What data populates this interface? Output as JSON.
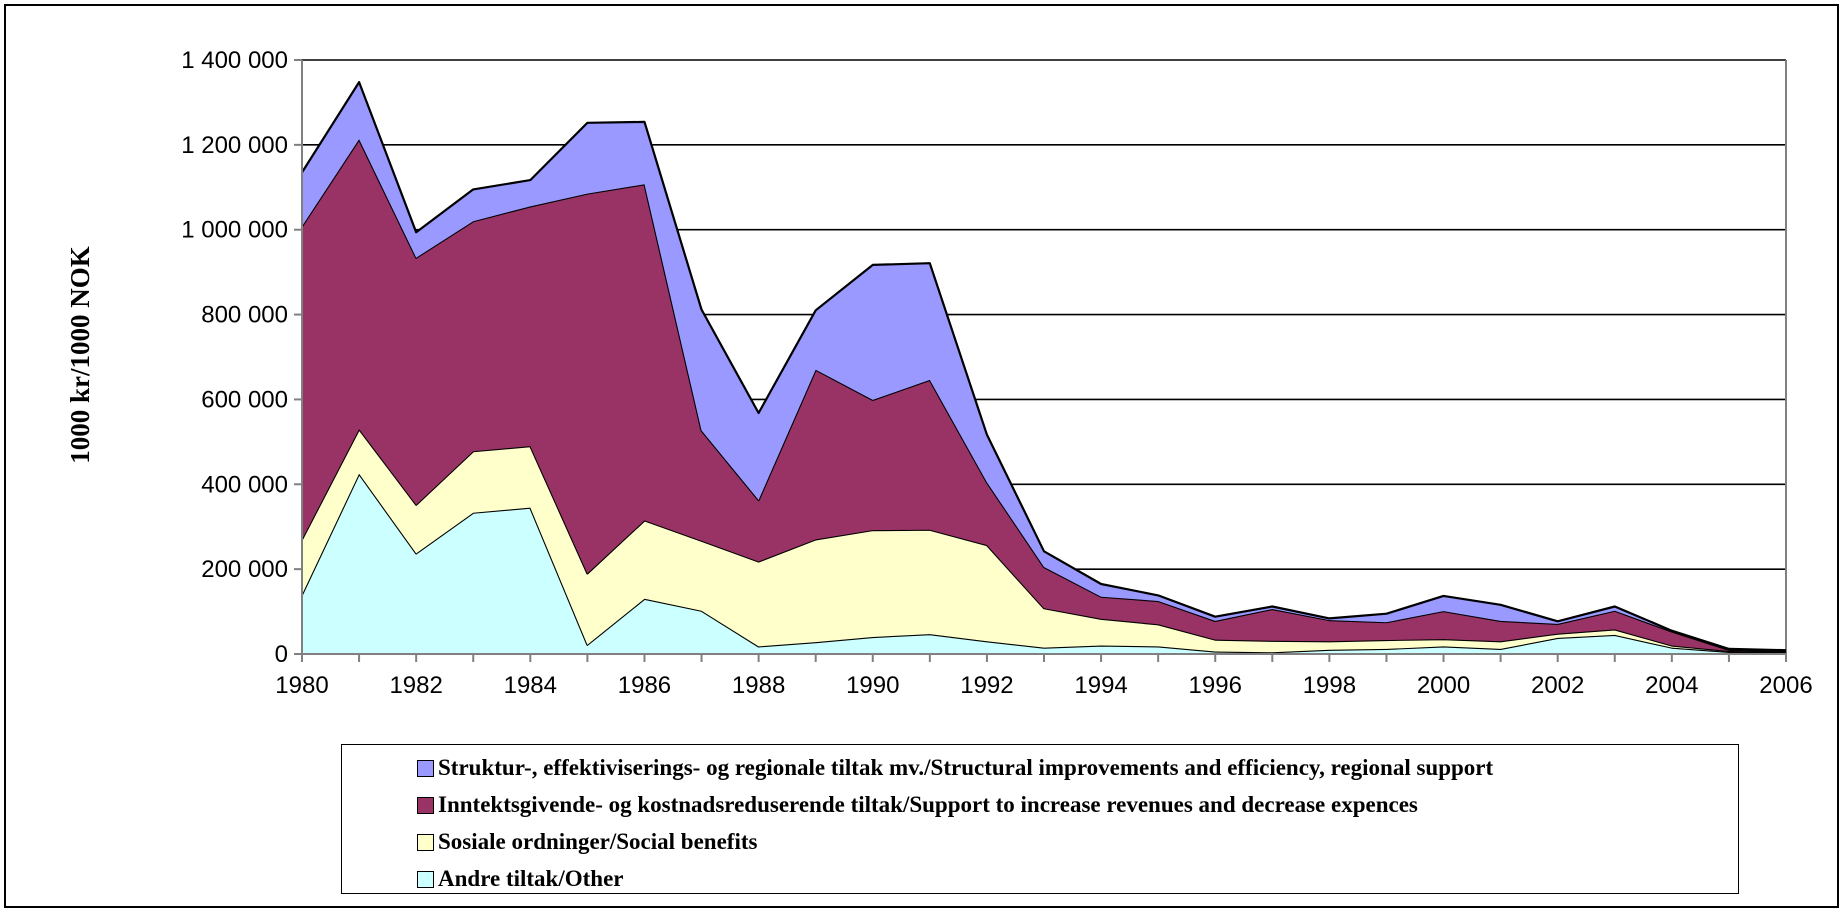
{
  "chart_data": {
    "type": "area",
    "stacked": true,
    "title": "",
    "xlabel": "",
    "ylabel": "1000 kr/1000 NOK",
    "x": [
      1980,
      1981,
      1982,
      1983,
      1984,
      1985,
      1986,
      1987,
      1988,
      1989,
      1990,
      1991,
      1992,
      1993,
      1994,
      1995,
      1996,
      1997,
      1998,
      1999,
      2000,
      2001,
      2002,
      2003,
      2004,
      2005,
      2006
    ],
    "xlim": [
      1980,
      2006
    ],
    "ylim": [
      0,
      1400000
    ],
    "x_ticks": [
      "1980",
      "1982",
      "1984",
      "1986",
      "1988",
      "1990",
      "1992",
      "1994",
      "1996",
      "1998",
      "2000",
      "2002",
      "2004",
      "2006"
    ],
    "y_ticks": [
      "0",
      "200 000",
      "400 000",
      "600 000",
      "800 000",
      "1 000 000",
      "1 200 000",
      "1 400 000"
    ],
    "grid": true,
    "legend_position": "bottom",
    "series": [
      {
        "name": "Andre tiltak/Other",
        "color": "#ccffff",
        "values": [
          140000,
          425000,
          237000,
          333000,
          345000,
          22000,
          130000,
          102000,
          18000,
          28000,
          40000,
          47000,
          30000,
          15000,
          20000,
          18000,
          6000,
          4000,
          10000,
          12000,
          18000,
          12000,
          38000,
          45000,
          15000,
          5000,
          4000
        ]
      },
      {
        "name": "Sosiale ordninger/Social benefits",
        "color": "#ffffcc",
        "values": [
          130000,
          105000,
          115000,
          145000,
          145000,
          168000,
          185000,
          165000,
          200000,
          242000,
          252000,
          246000,
          227000,
          93000,
          63000,
          52000,
          28000,
          27000,
          20000,
          21000,
          17000,
          18000,
          10000,
          13000,
          5000,
          2000,
          1000
        ]
      },
      {
        "name": "Inntektsgivende- og kostnadsreduserende tiltak/Support to increase revenues and decrease expences",
        "color": "#993366",
        "values": [
          738000,
          683000,
          582000,
          542000,
          565000,
          895000,
          792000,
          260000,
          145000,
          400000,
          307000,
          353000,
          148000,
          97000,
          52000,
          55000,
          44000,
          75000,
          50000,
          42000,
          66000,
          48000,
          23000,
          44000,
          33000,
          3000,
          2000
        ]
      },
      {
        "name": "Struktur-, effektiviserings- og regionale tiltak mv./Structural improvements and efficiency, regional support",
        "color": "#9999ff",
        "values": [
          127000,
          135000,
          60000,
          75000,
          62000,
          167000,
          147000,
          285000,
          205000,
          140000,
          318000,
          275000,
          112000,
          37000,
          30000,
          13000,
          10000,
          6000,
          4000,
          20000,
          36000,
          38000,
          6000,
          10000,
          2000,
          2000,
          2000
        ]
      }
    ]
  }
}
